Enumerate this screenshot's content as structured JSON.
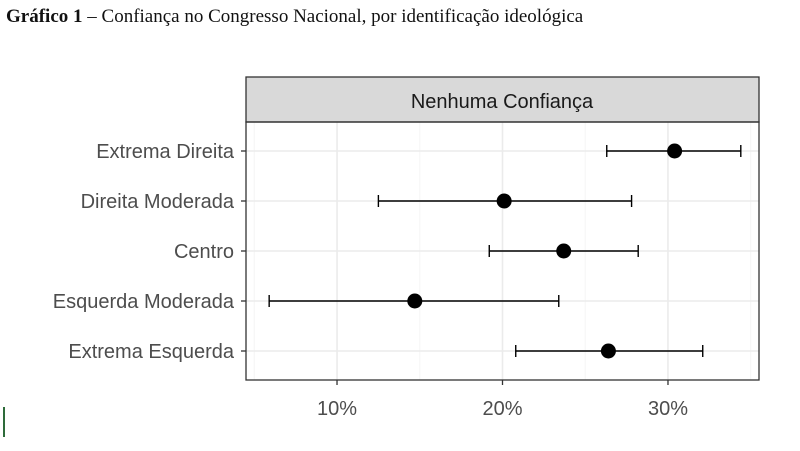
{
  "caption": {
    "number": "Gráfico 1",
    "text": " – Confiança no Congresso Nacional, por identificação ideológica"
  },
  "chart_data": {
    "type": "scatter",
    "subtype": "dot-with-error-bars",
    "panel_title": "Nenhuma Confiança",
    "categories": [
      "Extrema Direita",
      "Direita Moderada",
      "Centro",
      "Esquerda Moderada",
      "Extrema Esquerda"
    ],
    "values": [
      30.4,
      20.1,
      23.7,
      14.7,
      26.4
    ],
    "lower": [
      26.3,
      12.5,
      19.2,
      5.9,
      20.8
    ],
    "upper": [
      34.4,
      27.8,
      28.2,
      23.4,
      32.1
    ],
    "x_ticks": [
      10,
      20,
      30
    ],
    "x_tick_labels": [
      "10%",
      "20%",
      "30%"
    ],
    "xlim": [
      4.5,
      35.5
    ],
    "grid": true,
    "colors": {
      "points": "#000000",
      "strip_fill": "#d9d9d9",
      "grid_major": "#ebebeb",
      "grid_minor": "#f5f5f5",
      "panel_border": "#333333"
    }
  }
}
